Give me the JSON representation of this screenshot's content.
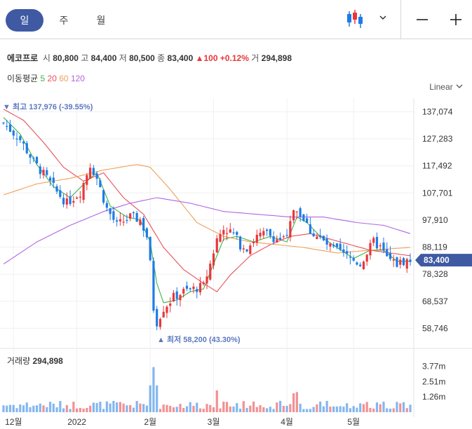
{
  "tabs": {
    "day": "일",
    "week": "주",
    "month": "월"
  },
  "stock": {
    "name": "에코프로",
    "open_label": "시",
    "open": "80,800",
    "high_label": "고",
    "high": "84,400",
    "low_label": "저",
    "low": "80,500",
    "close_label": "종",
    "close": "83,400",
    "change": "100",
    "change_pct": "+0.12%",
    "volume_label": "거",
    "volume": "294,898"
  },
  "ma": {
    "label": "이동평균",
    "ma5": "5",
    "ma20": "20",
    "ma60": "60",
    "ma120": "120",
    "colors": {
      "ma5": "#3cb44b",
      "ma20": "#e8505b",
      "ma60": "#f0a05a",
      "ma120": "#b066e0"
    }
  },
  "scale_mode": "Linear",
  "colors": {
    "up": "#e8373b",
    "down": "#1e7be6",
    "accent": "#3f5aa3"
  },
  "chart_data": {
    "type": "candlestick",
    "y_ticks": [
      "137,074",
      "127,283",
      "117,492",
      "107,701",
      "97,910",
      "88,119",
      "78,328",
      "68,537",
      "58,746"
    ],
    "y_tick_values": [
      137074,
      127283,
      117492,
      107701,
      97910,
      88119,
      78328,
      68537,
      58746
    ],
    "ylim": [
      52000,
      142000
    ],
    "x_ticks": [
      "12월",
      "2022",
      "2월",
      "3월",
      "4월",
      "5월"
    ],
    "current_price_label": "83,400",
    "max_label": "최고 137,976 (-39.55%)",
    "min_label": "최저 58,200 (43.30%)",
    "volume_title": "거래량",
    "volume_value": "294,898",
    "volume_ticks": [
      "3.77m",
      "2.51m",
      "1.26m"
    ],
    "close_anchors": [
      [
        0,
        133000
      ],
      [
        5,
        127000
      ],
      [
        9,
        119000
      ],
      [
        13,
        113000
      ],
      [
        16,
        108000
      ],
      [
        19,
        104000
      ],
      [
        23,
        108000
      ],
      [
        26,
        118000
      ],
      [
        28,
        113000
      ],
      [
        31,
        102000
      ],
      [
        34,
        96000
      ],
      [
        38,
        99000
      ],
      [
        41,
        98000
      ],
      [
        43,
        92000
      ],
      [
        44,
        82000
      ],
      [
        45,
        66000
      ],
      [
        46,
        61000
      ],
      [
        48,
        66000
      ],
      [
        51,
        70000
      ],
      [
        54,
        72000
      ],
      [
        57,
        73000
      ],
      [
        60,
        74000
      ],
      [
        62,
        82000
      ],
      [
        64,
        91000
      ],
      [
        66,
        95000
      ],
      [
        69,
        93000
      ],
      [
        71,
        89000
      ],
      [
        73,
        88000
      ],
      [
        76,
        92000
      ],
      [
        79,
        93000
      ],
      [
        82,
        91000
      ],
      [
        85,
        91000
      ],
      [
        87,
        102000
      ],
      [
        89,
        100000
      ],
      [
        92,
        94000
      ],
      [
        95,
        91000
      ],
      [
        98,
        88000
      ],
      [
        101,
        86000
      ],
      [
        104,
        84000
      ],
      [
        107,
        82000
      ],
      [
        109,
        86000
      ],
      [
        111,
        90000
      ],
      [
        113,
        88000
      ],
      [
        115,
        84000
      ],
      [
        118,
        82000
      ],
      [
        120,
        83000
      ],
      [
        122,
        83400
      ]
    ],
    "ma5_anchors": [
      [
        0,
        135000
      ],
      [
        5,
        129000
      ],
      [
        10,
        118000
      ],
      [
        15,
        110000
      ],
      [
        20,
        106000
      ],
      [
        25,
        112000
      ],
      [
        28,
        115000
      ],
      [
        32,
        103000
      ],
      [
        37,
        99000
      ],
      [
        41,
        98000
      ],
      [
        44,
        90000
      ],
      [
        46,
        75000
      ],
      [
        48,
        68000
      ],
      [
        52,
        69000
      ],
      [
        56,
        72000
      ],
      [
        60,
        73000
      ],
      [
        63,
        82000
      ],
      [
        66,
        91000
      ],
      [
        70,
        92000
      ],
      [
        75,
        90000
      ],
      [
        80,
        92000
      ],
      [
        85,
        90000
      ],
      [
        88,
        99000
      ],
      [
        91,
        97000
      ],
      [
        95,
        92000
      ],
      [
        100,
        88000
      ],
      [
        105,
        84000
      ],
      [
        110,
        87000
      ],
      [
        114,
        87000
      ],
      [
        118,
        83000
      ],
      [
        122,
        83000
      ]
    ],
    "ma20_anchors": [
      [
        0,
        138000
      ],
      [
        6,
        134000
      ],
      [
        12,
        126000
      ],
      [
        18,
        117000
      ],
      [
        24,
        112000
      ],
      [
        30,
        115000
      ],
      [
        36,
        106000
      ],
      [
        42,
        100000
      ],
      [
        48,
        88000
      ],
      [
        54,
        80000
      ],
      [
        60,
        75000
      ],
      [
        64,
        72000
      ],
      [
        68,
        78000
      ],
      [
        74,
        85000
      ],
      [
        80,
        89000
      ],
      [
        86,
        92000
      ],
      [
        92,
        93000
      ],
      [
        98,
        91000
      ],
      [
        104,
        89000
      ],
      [
        110,
        87000
      ],
      [
        116,
        86000
      ],
      [
        122,
        85000
      ]
    ],
    "ma60_anchors": [
      [
        0,
        107000
      ],
      [
        10,
        111000
      ],
      [
        20,
        113000
      ],
      [
        30,
        116000
      ],
      [
        40,
        118000
      ],
      [
        44,
        117000
      ],
      [
        50,
        109000
      ],
      [
        58,
        97000
      ],
      [
        66,
        92000
      ],
      [
        74,
        90000
      ],
      [
        82,
        89000
      ],
      [
        90,
        88000
      ],
      [
        100,
        86000
      ],
      [
        110,
        87000
      ],
      [
        122,
        88000
      ]
    ],
    "ma120_anchors": [
      [
        0,
        82000
      ],
      [
        10,
        90000
      ],
      [
        20,
        96000
      ],
      [
        30,
        101000
      ],
      [
        38,
        104000
      ],
      [
        46,
        106000
      ],
      [
        56,
        104000
      ],
      [
        66,
        101000
      ],
      [
        76,
        100000
      ],
      [
        86,
        99000
      ],
      [
        96,
        99000
      ],
      [
        106,
        97000
      ],
      [
        114,
        96000
      ],
      [
        122,
        93000
      ]
    ]
  }
}
